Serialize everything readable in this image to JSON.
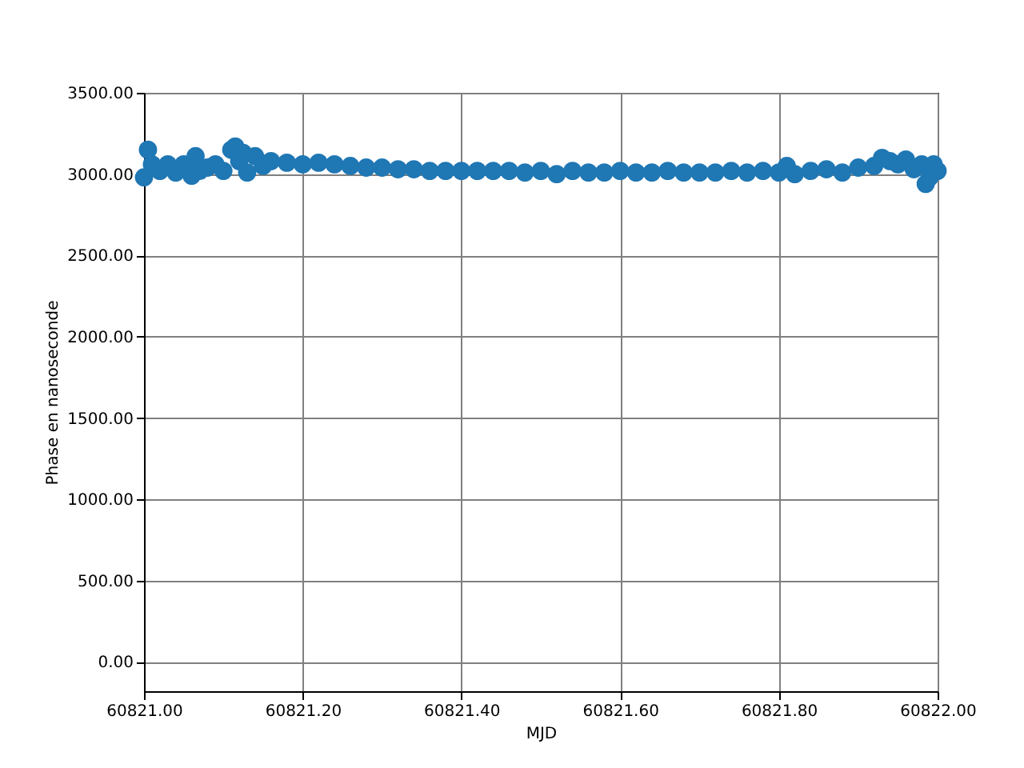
{
  "chart_data": {
    "type": "scatter",
    "xlabel": "MJD",
    "ylabel": "Phase en nanoseconde",
    "x": [
      60821.0,
      60821.005,
      60821.01,
      60821.02,
      60821.03,
      60821.04,
      60821.05,
      60821.06,
      60821.065,
      60821.07,
      60821.08,
      60821.09,
      60821.1,
      60821.11,
      60821.115,
      60821.12,
      60821.125,
      60821.13,
      60821.14,
      60821.15,
      60821.16,
      60821.18,
      60821.2,
      60821.22,
      60821.24,
      60821.26,
      60821.28,
      60821.3,
      60821.32,
      60821.34,
      60821.36,
      60821.38,
      60821.4,
      60821.42,
      60821.44,
      60821.46,
      60821.48,
      60821.5,
      60821.52,
      60821.54,
      60821.56,
      60821.58,
      60821.6,
      60821.62,
      60821.64,
      60821.66,
      60821.68,
      60821.7,
      60821.72,
      60821.74,
      60821.76,
      60821.78,
      60821.8,
      60821.81,
      60821.82,
      60821.84,
      60821.86,
      60821.88,
      60821.9,
      60821.92,
      60821.93,
      60821.94,
      60821.95,
      60821.96,
      60821.97,
      60821.98,
      60821.985,
      60821.99,
      60821.995,
      60822.0
    ],
    "values": [
      2980,
      3150,
      3060,
      3020,
      3060,
      3010,
      3060,
      2990,
      3110,
      3020,
      3040,
      3060,
      3020,
      3150,
      3170,
      3080,
      3130,
      3010,
      3110,
      3050,
      3080,
      3070,
      3060,
      3070,
      3060,
      3050,
      3040,
      3040,
      3030,
      3030,
      3020,
      3020,
      3020,
      3020,
      3020,
      3020,
      3010,
      3020,
      3000,
      3020,
      3010,
      3010,
      3020,
      3010,
      3010,
      3020,
      3010,
      3010,
      3010,
      3020,
      3010,
      3020,
      3010,
      3050,
      3000,
      3020,
      3030,
      3010,
      3040,
      3050,
      3100,
      3080,
      3060,
      3090,
      3030,
      3060,
      2940,
      2980,
      3060,
      3020
    ],
    "color": "#1f77b4",
    "marker": "circle",
    "xlim": [
      60821.0,
      60822.0
    ],
    "xticks": [
      {
        "value": 60821.0,
        "label": "60821.00"
      },
      {
        "value": 60821.2,
        "label": "60821.20"
      },
      {
        "value": 60821.4,
        "label": "60821.40"
      },
      {
        "value": 60821.6,
        "label": "60821.60"
      },
      {
        "value": 60821.8,
        "label": "60821.80"
      },
      {
        "value": 60822.0,
        "label": "60822.00"
      }
    ],
    "ylim": [
      -180,
      3500
    ],
    "yticks": [
      {
        "value": 0,
        "label": "0.00"
      },
      {
        "value": 500,
        "label": "500.00"
      },
      {
        "value": 1000,
        "label": "1000.00"
      },
      {
        "value": 1500,
        "label": "1500.00"
      },
      {
        "value": 2000,
        "label": "2000.00"
      },
      {
        "value": 2500,
        "label": "2500.00"
      },
      {
        "value": 3000,
        "label": "3000.00"
      },
      {
        "value": 3500,
        "label": "3500.00"
      }
    ],
    "grid": true
  }
}
